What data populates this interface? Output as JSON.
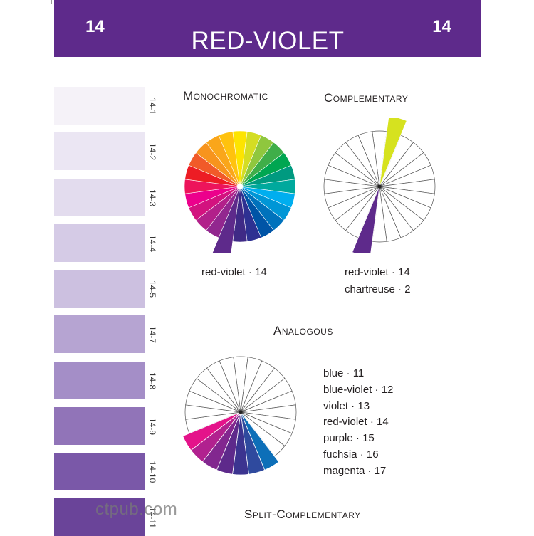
{
  "header": {
    "number_left": "14",
    "number_right": "14",
    "title": "RED-VIOLET"
  },
  "swatches": [
    {
      "label": "14-1",
      "color": "#f5f2f8"
    },
    {
      "label": "14-2",
      "color": "#ebe6f3"
    },
    {
      "label": "14-3",
      "color": "#e3dcee"
    },
    {
      "label": "14-4",
      "color": "#d5cbe6"
    },
    {
      "label": "14-5",
      "color": "#ccc0e0"
    },
    {
      "label": "14-7",
      "color": "#b6a4d2"
    },
    {
      "label": "14-8",
      "color": "#a48ec7"
    },
    {
      "label": "14-9",
      "color": "#9174b8"
    },
    {
      "label": "14-10",
      "color": "#7a58a8"
    },
    {
      "label": "14-11",
      "color": "#6a4499"
    }
  ],
  "monochromatic": {
    "heading": "Monochromatic",
    "caption_line1": "red-violet · 14",
    "colors": [
      "#fde400",
      "#d4dd23",
      "#8fc73e",
      "#3fae49",
      "#00a651",
      "#009a80",
      "#00a99d",
      "#00aeef",
      "#0096d6",
      "#0072bc",
      "#0054a6",
      "#2e3192",
      "#3f2a86",
      "#5b2a86",
      "#92278f",
      "#b2208a",
      "#d3127f",
      "#ec008c",
      "#ed145b",
      "#ed1c24",
      "#f15a29",
      "#f7941d",
      "#faa61a",
      "#ffc20e"
    ],
    "highlight_index": 13,
    "highlight_color": "#5e2a8b"
  },
  "complementary": {
    "heading": "Complementary",
    "caption_line1": "red-violet · 14",
    "caption_line2": "chartreuse · 2",
    "colors": [
      {
        "index": 1,
        "color": "#d6e21f"
      },
      {
        "index": 13,
        "color": "#5e2a8b"
      }
    ]
  },
  "analogous": {
    "heading": "Analogous",
    "items": [
      "blue · 11",
      "blue-violet · 12",
      "violet · 13",
      "red-violet  · 14",
      "purple · 15",
      "fuchsia · 16",
      "magenta · 17"
    ],
    "colors": [
      {
        "index": 10,
        "color": "#0d6fb8"
      },
      {
        "index": 11,
        "color": "#2f4a9e"
      },
      {
        "index": 12,
        "color": "#3c3490"
      },
      {
        "index": 13,
        "color": "#5e2a8b"
      },
      {
        "index": 14,
        "color": "#82278f"
      },
      {
        "index": 15,
        "color": "#b1218f"
      },
      {
        "index": 16,
        "color": "#e4138a"
      }
    ]
  },
  "split_complementary": {
    "heading": "Split-Complementary"
  },
  "watermark": "ctpub.com"
}
